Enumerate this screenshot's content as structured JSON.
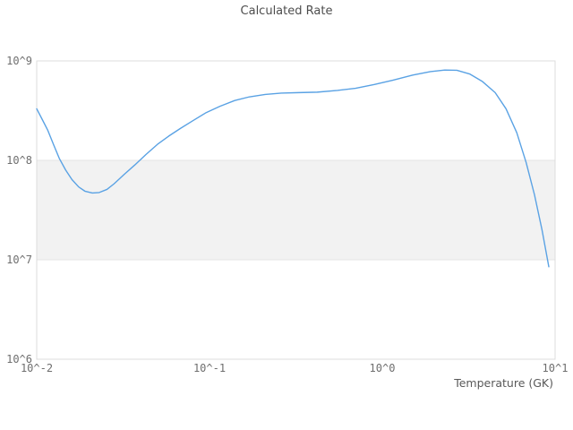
{
  "colors": {
    "background": "#ffffff",
    "line": "#5aa2e4",
    "band_fill": "#f2f2f2",
    "band_edge": "#e4e4e4",
    "plot_border": "#dcdcdc",
    "title_text": "#4d4d4d",
    "tick_text": "#6e6e6e",
    "axis_label_text": "#595959"
  },
  "chart_data": {
    "type": "line",
    "title": "Calculated Rate",
    "xlabel": "Temperature (GK)",
    "ylabel": "",
    "x_scale": "log",
    "y_scale": "log",
    "xlim": [
      0.01,
      10
    ],
    "ylim": [
      1000000,
      1000000000
    ],
    "grid": "horizontal-decade-band",
    "legend": "none",
    "band": {
      "y0": 10000000,
      "y1": 100000000
    },
    "xticks": [
      {
        "label": "10^-2",
        "value": 0.01
      },
      {
        "label": "10^-1",
        "value": 0.1
      },
      {
        "label": "10^0",
        "value": 1
      },
      {
        "label": "10^1",
        "value": 10
      }
    ],
    "yticks": [
      {
        "label": "10^6",
        "value": 1000000
      },
      {
        "label": "10^7",
        "value": 10000000
      },
      {
        "label": "10^8",
        "value": 100000000
      },
      {
        "label": "10^9",
        "value": 1000000000
      }
    ],
    "series": [
      {
        "name": "Calculated Rate",
        "x": [
          0.01,
          0.0108,
          0.0116,
          0.0125,
          0.0135,
          0.0147,
          0.016,
          0.0175,
          0.019,
          0.021,
          0.023,
          0.0255,
          0.028,
          0.032,
          0.037,
          0.043,
          0.05,
          0.058,
          0.068,
          0.08,
          0.095,
          0.115,
          0.14,
          0.17,
          0.21,
          0.26,
          0.33,
          0.42,
          0.55,
          0.7,
          0.9,
          1.15,
          1.5,
          1.9,
          2.3,
          2.7,
          3.2,
          3.8,
          4.5,
          5.2,
          6.0,
          6.8,
          7.6,
          8.4,
          9.2
        ],
        "y": [
          330000000,
          255000000,
          200000000,
          145000000,
          105000000,
          80000000,
          64000000,
          54000000,
          49000000,
          47000000,
          47500000,
          51000000,
          58000000,
          72000000,
          90000000,
          115000000,
          145000000,
          175000000,
          210000000,
          250000000,
          300000000,
          350000000,
          400000000,
          435000000,
          460000000,
          475000000,
          480000000,
          485000000,
          505000000,
          530000000,
          580000000,
          640000000,
          720000000,
          780000000,
          810000000,
          805000000,
          740000000,
          620000000,
          480000000,
          330000000,
          190000000,
          95000000,
          45000000,
          20000000,
          8500000
        ]
      }
    ]
  }
}
